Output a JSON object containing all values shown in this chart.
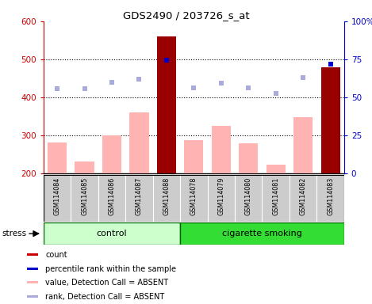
{
  "title": "GDS2490 / 203726_s_at",
  "samples": [
    "GSM114084",
    "GSM114085",
    "GSM114086",
    "GSM114087",
    "GSM114088",
    "GSM114078",
    "GSM114079",
    "GSM114080",
    "GSM114081",
    "GSM114082",
    "GSM114083"
  ],
  "bar_values": [
    280,
    230,
    300,
    360,
    560,
    287,
    325,
    278,
    222,
    348,
    478
  ],
  "bar_is_present": [
    false,
    false,
    false,
    false,
    true,
    false,
    false,
    false,
    false,
    false,
    true
  ],
  "rank_dots": [
    422,
    422,
    440,
    447,
    497,
    425,
    438,
    424,
    410,
    451,
    487
  ],
  "rank_is_present": [
    false,
    false,
    false,
    false,
    true,
    false,
    false,
    false,
    false,
    false,
    true
  ],
  "ylim_left": [
    200,
    600
  ],
  "ylim_right": [
    0,
    100
  ],
  "yticks_left": [
    200,
    300,
    400,
    500,
    600
  ],
  "yticks_right": [
    0,
    25,
    50,
    75,
    100
  ],
  "ytick_labels_right": [
    "0",
    "25",
    "50",
    "75",
    "100%"
  ],
  "left_axis_color": "#cc0000",
  "right_axis_color": "#0000cc",
  "bar_present_color": "#990000",
  "bar_absent_color": "#ffb3b3",
  "dot_present_color": "#0000cc",
  "dot_absent_color": "#aaaadd",
  "control_group_color": "#ccffcc",
  "smoking_group_color": "#33dd33",
  "label_area_color": "#cccccc",
  "stress_label": "stress",
  "group_labels": [
    "control",
    "cigarette smoking"
  ],
  "legend_items": [
    {
      "color": "#cc0000",
      "label": "count"
    },
    {
      "color": "#0000cc",
      "label": "percentile rank within the sample"
    },
    {
      "color": "#ffb3b3",
      "label": "value, Detection Call = ABSENT"
    },
    {
      "color": "#aaaadd",
      "label": "rank, Detection Call = ABSENT"
    }
  ],
  "bar_width": 0.7,
  "dotted_grid_color": "#000000",
  "background_color": "#ffffff",
  "n_control": 5,
  "n_smoking": 6
}
